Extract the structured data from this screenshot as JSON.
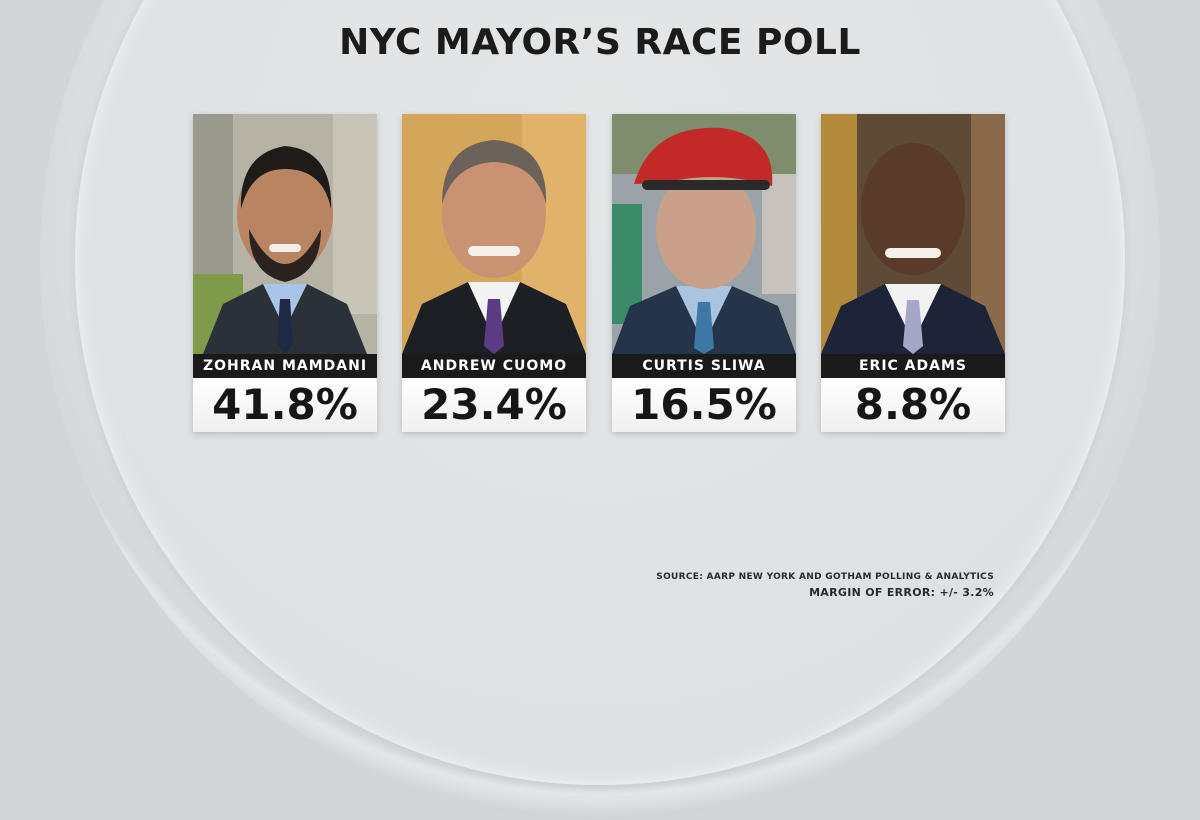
{
  "title": "NYC MAYOR’S RACE POLL",
  "chart_data": {
    "type": "bar",
    "title": "NYC MAYOR’S RACE POLL",
    "categories": [
      "ZOHRAN MAMDANI",
      "ANDREW CUOMO",
      "CURTIS SLIWA",
      "ERIC ADAMS"
    ],
    "values": [
      41.8,
      23.4,
      16.5,
      8.8
    ],
    "value_labels": [
      "41.8%",
      "23.4%",
      "16.5%",
      "8.8%"
    ]
  },
  "source": "SOURCE: AARP NEW YORK AND GOTHAM POLLING & ANALYTICS",
  "margin_of_error": "MARGIN OF ERROR: +/- 3.2%",
  "colors": {
    "name_bar": "#1a1a1a",
    "text": "#161616"
  },
  "photos": [
    "candidate-photo-mamdani",
    "candidate-photo-cuomo",
    "candidate-photo-sliwa",
    "candidate-photo-adams"
  ]
}
